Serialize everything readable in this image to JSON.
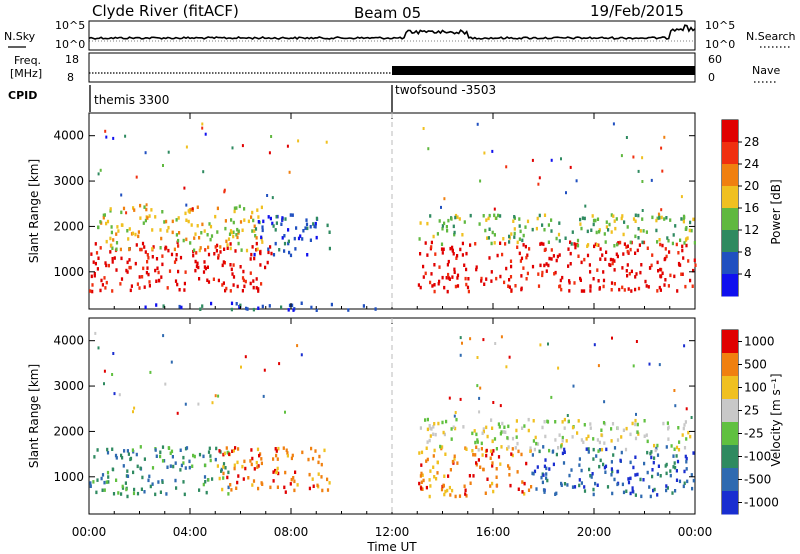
{
  "header": {
    "station": "Clyde River (fitACF)",
    "beam": "Beam 05",
    "date": "19/Feb/2015"
  },
  "panels": {
    "nsky_label": "N.Sky",
    "nsearch_label": "N.Search",
    "noise_ticks_left": [
      "10^5",
      "10^0"
    ],
    "noise_ticks_right": [
      "10^5",
      "10^0"
    ],
    "freq_label": "Freq.",
    "freq_unit": "[MHz]",
    "freq_ticks": [
      "18",
      "8"
    ],
    "nave_label": "Nave",
    "nave_ticks": [
      "60",
      "0"
    ],
    "cpid_label": "CPID",
    "cpid_segments": [
      {
        "name": "themis 3300",
        "start_hour": 0
      },
      {
        "name": "twofsound -3503",
        "start_hour": 12
      }
    ]
  },
  "chart_data": [
    {
      "type": "heatmap",
      "parameter": "Power",
      "ylabel": "Slant Range [km]",
      "y_ticks": [
        "1000",
        "2000",
        "3000",
        "4000"
      ],
      "ylim": [
        180,
        4500
      ],
      "xlim_hours": [
        0,
        24
      ],
      "colorbar": {
        "label": "Power [dB]",
        "ticks": [
          "4",
          "8",
          "12",
          "16",
          "20",
          "24",
          "28"
        ],
        "colors": [
          "#1010ee",
          "#2050c0",
          "#2f8a60",
          "#60b840",
          "#f0c020",
          "#f08010",
          "#f03010",
          "#e00000"
        ]
      },
      "scatter_regions": [
        {
          "x_start": 0.0,
          "x_end": 7.2,
          "y_low": 600,
          "y_high": 1700,
          "color_index": 7
        },
        {
          "x_start": 0.3,
          "x_end": 7.0,
          "y_low": 1500,
          "y_high": 2500,
          "color_index": 4
        },
        {
          "x_start": 6.5,
          "x_end": 9.5,
          "y_low": 1400,
          "y_high": 2300,
          "color_index": 1
        },
        {
          "x_start": 13.0,
          "x_end": 24.0,
          "y_low": 600,
          "y_high": 1700,
          "color_index": 7
        },
        {
          "x_start": 13.0,
          "x_end": 24.0,
          "y_low": 1600,
          "y_high": 2300,
          "color_index": 3
        },
        {
          "x_start": 2.0,
          "x_end": 11.5,
          "y_low": 190,
          "y_high": 350,
          "color_index": 1
        }
      ]
    },
    {
      "type": "heatmap",
      "parameter": "Velocity",
      "ylabel": "Slant Range [km]",
      "y_ticks": [
        "1000",
        "2000",
        "3000",
        "4000"
      ],
      "ylim": [
        180,
        4500
      ],
      "xlim_hours": [
        0,
        24
      ],
      "x_ticks": [
        "00:00",
        "04:00",
        "08:00",
        "12:00",
        "16:00",
        "20:00",
        "00:00"
      ],
      "xlabel": "Time UT",
      "colorbar": {
        "label": "Velocity [m s⁻¹]",
        "ticks": [
          "1000",
          "500",
          "100",
          "25",
          "-25",
          "-100",
          "-500",
          "-1000"
        ],
        "colors": [
          "#1a2ed0",
          "#2f6ab0",
          "#2f8a60",
          "#60c040",
          "#c8c8c8",
          "#f0c020",
          "#f08010",
          "#e00000"
        ]
      },
      "scatter_regions": [
        {
          "x_start": 0.0,
          "x_end": 5.5,
          "y_low": 600,
          "y_high": 1700,
          "color_index": 2
        },
        {
          "x_start": 5.0,
          "x_end": 9.5,
          "y_low": 700,
          "y_high": 1700,
          "color_index": 6
        },
        {
          "x_start": 13.0,
          "x_end": 17.5,
          "y_low": 600,
          "y_high": 1700,
          "color_index": 6
        },
        {
          "x_start": 17.5,
          "x_end": 24.0,
          "y_low": 600,
          "y_high": 1700,
          "color_index": 1
        },
        {
          "x_start": 13.0,
          "x_end": 24.0,
          "y_low": 1600,
          "y_high": 2300,
          "color_index": 4
        }
      ]
    }
  ]
}
